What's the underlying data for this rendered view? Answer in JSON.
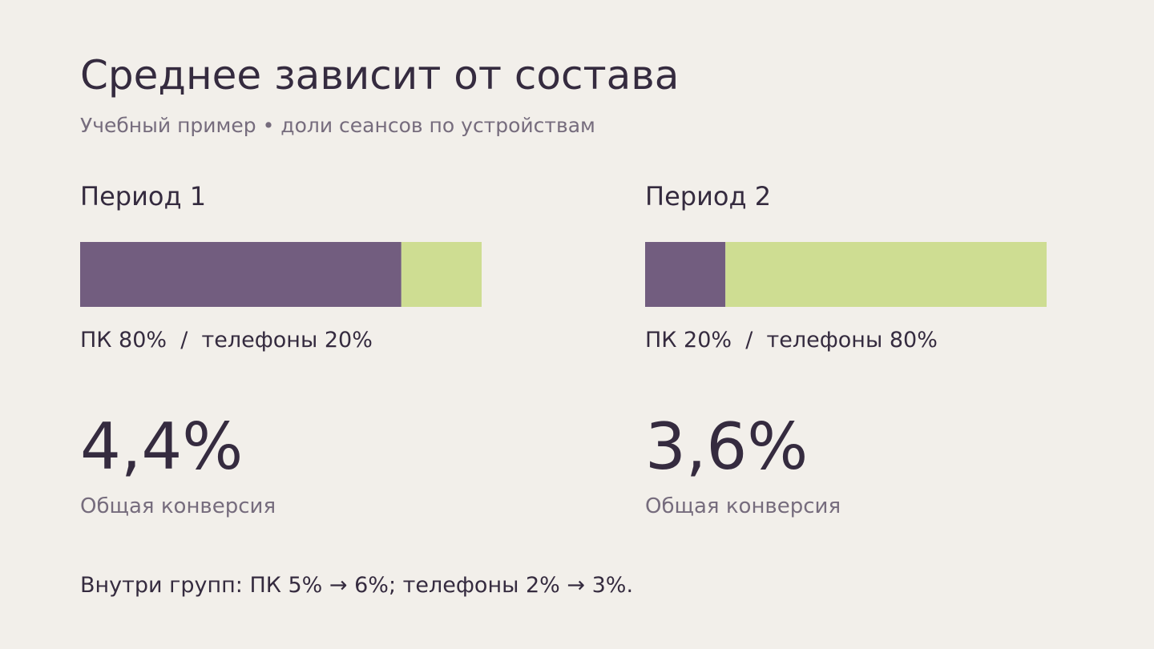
{
  "header": {
    "title": "Среднее зависит от состава",
    "subtitle": "Учебный пример • доли сеансов по устройствам"
  },
  "colors": {
    "background": "#f2efea",
    "pc": "#725d7f",
    "phones": "#cedd92",
    "text": "#352b3f",
    "muted": "#766c7d"
  },
  "chart_data": {
    "type": "bar",
    "orientation": "horizontal-stacked",
    "categories": [
      "Период 1",
      "Период 2"
    ],
    "unit": "%",
    "series": [
      {
        "name": "ПК",
        "values": [
          80,
          20
        ]
      },
      {
        "name": "телефоны",
        "values": [
          20,
          80
        ]
      }
    ],
    "xlim": [
      0,
      100
    ]
  },
  "panels": [
    {
      "period": "Период 1",
      "shares": "ПК 80%  /  телефоны 20%",
      "overall_value": "4,4%",
      "overall_label": "Общая конверсия"
    },
    {
      "period": "Период 2",
      "shares": "ПК 20%  /  телефоны 80%",
      "overall_value": "3,6%",
      "overall_label": "Общая конверсия"
    }
  ],
  "footnote": "Внутри групп: ПК 5% → 6%; телефоны 2% → 3%."
}
